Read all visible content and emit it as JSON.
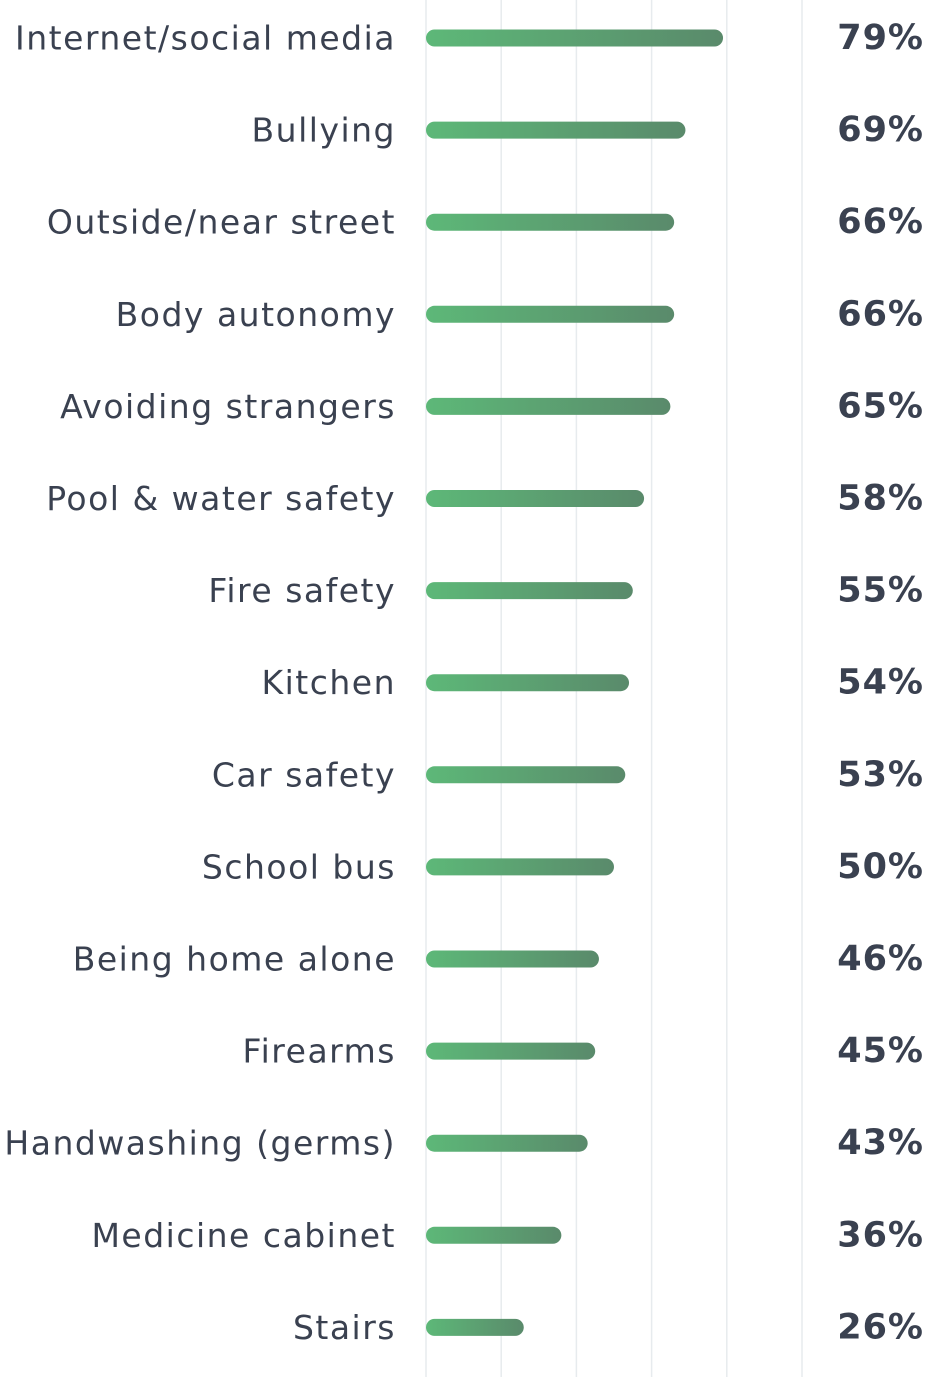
{
  "chart_data": {
    "type": "bar",
    "orientation": "horizontal",
    "categories": [
      "Internet/social media",
      "Bullying",
      "Outside/near street",
      "Body autonomy",
      "Avoiding strangers",
      "Pool & water safety",
      "Fire safety",
      "Kitchen",
      "Car safety",
      "School bus",
      "Being home alone",
      "Firearms",
      "Handwashing (germs)",
      "Medicine cabinet",
      "Stairs"
    ],
    "values": [
      79,
      69,
      66,
      66,
      65,
      58,
      55,
      54,
      53,
      50,
      46,
      45,
      43,
      36,
      26
    ],
    "value_labels": [
      "79%",
      "69%",
      "66%",
      "66%",
      "65%",
      "58%",
      "55%",
      "54%",
      "53%",
      "50%",
      "46%",
      "45%",
      "43%",
      "36%",
      "26%"
    ],
    "xlim": [
      0,
      100
    ],
    "grid": true,
    "bar_gradient": [
      "#5db878",
      "#5a8a6b"
    ],
    "text_color": "#3a4150",
    "grid_color": "#e7ebee"
  }
}
